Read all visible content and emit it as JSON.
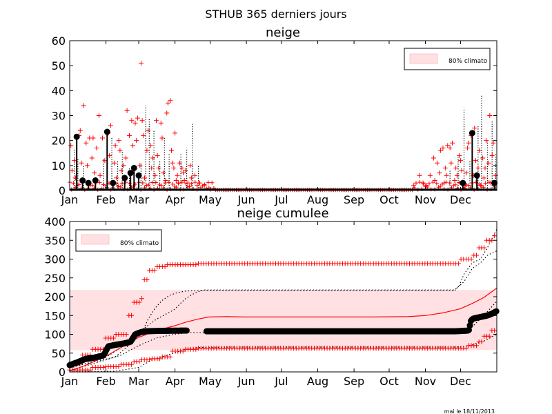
{
  "figure": {
    "suptitle": "STHUB 365 derniers jours",
    "footer": "mai le 18/11/2013"
  },
  "months": [
    "Jan",
    "Feb",
    "Mar",
    "Apr",
    "May",
    "Jun",
    "Jul",
    "Aug",
    "Sep",
    "Oct",
    "Nov",
    "Dec"
  ],
  "colors": {
    "red": "#ff0000",
    "band": "#ffe0e3",
    "black": "#000000"
  },
  "chart_data": [
    {
      "type": "scatter",
      "title": "neige",
      "xlabel": "",
      "ylabel": "",
      "ylim": [
        0,
        60
      ],
      "yticks": [
        0,
        10,
        20,
        30,
        40,
        50,
        60
      ],
      "xlim": [
        1,
        366
      ],
      "legend": {
        "label": "80% climato",
        "placement": "top-right"
      },
      "observed_peaks": [
        {
          "x": 7,
          "y": 21.5
        },
        {
          "x": 12,
          "y": 4
        },
        {
          "x": 17,
          "y": 3
        },
        {
          "x": 23,
          "y": 4
        },
        {
          "x": 33,
          "y": 23.5
        },
        {
          "x": 38,
          "y": 3
        },
        {
          "x": 48,
          "y": 5
        },
        {
          "x": 53,
          "y": 7
        },
        {
          "x": 56,
          "y": 9
        },
        {
          "x": 60,
          "y": 6
        },
        {
          "x": 337,
          "y": 3
        },
        {
          "x": 345,
          "y": 23
        },
        {
          "x": 349,
          "y": 6
        },
        {
          "x": 364,
          "y": 3
        }
      ],
      "dotted_spikes": [
        {
          "x": 5,
          "y": 17
        },
        {
          "x": 8,
          "y": 13
        },
        {
          "x": 13,
          "y": 10
        },
        {
          "x": 30,
          "y": 13
        },
        {
          "x": 37,
          "y": 21
        },
        {
          "x": 42,
          "y": 12
        },
        {
          "x": 46,
          "y": 16
        },
        {
          "x": 52,
          "y": 9
        },
        {
          "x": 62,
          "y": 11
        },
        {
          "x": 66,
          "y": 34
        },
        {
          "x": 69,
          "y": 29
        },
        {
          "x": 73,
          "y": 24
        },
        {
          "x": 78,
          "y": 12
        },
        {
          "x": 82,
          "y": 21
        },
        {
          "x": 86,
          "y": 15
        },
        {
          "x": 96,
          "y": 15
        },
        {
          "x": 101,
          "y": 17
        },
        {
          "x": 106,
          "y": 27
        },
        {
          "x": 111,
          "y": 10
        },
        {
          "x": 326,
          "y": 8
        },
        {
          "x": 333,
          "y": 14
        },
        {
          "x": 338,
          "y": 33
        },
        {
          "x": 343,
          "y": 12
        },
        {
          "x": 350,
          "y": 26
        },
        {
          "x": 353,
          "y": 38
        },
        {
          "x": 358,
          "y": 20
        },
        {
          "x": 362,
          "y": 28
        },
        {
          "x": 365,
          "y": 15
        }
      ],
      "ensemble_max_markers": [
        {
          "x": 2,
          "y": 18
        },
        {
          "x": 3,
          "y": 8
        },
        {
          "x": 5,
          "y": 12
        },
        {
          "x": 6,
          "y": 5
        },
        {
          "x": 9,
          "y": 22
        },
        {
          "x": 10,
          "y": 24
        },
        {
          "x": 11,
          "y": 11
        },
        {
          "x": 13,
          "y": 34
        },
        {
          "x": 15,
          "y": 19
        },
        {
          "x": 16,
          "y": 10
        },
        {
          "x": 18,
          "y": 21
        },
        {
          "x": 20,
          "y": 13
        },
        {
          "x": 21,
          "y": 21
        },
        {
          "x": 22,
          "y": 7
        },
        {
          "x": 24,
          "y": 17
        },
        {
          "x": 26,
          "y": 30
        },
        {
          "x": 27,
          "y": 6
        },
        {
          "x": 29,
          "y": 21
        },
        {
          "x": 31,
          "y": 12
        },
        {
          "x": 34,
          "y": 23
        },
        {
          "x": 35,
          "y": 14
        },
        {
          "x": 36,
          "y": 26
        },
        {
          "x": 39,
          "y": 11
        },
        {
          "x": 40,
          "y": 18
        },
        {
          "x": 41,
          "y": 5
        },
        {
          "x": 43,
          "y": 20
        },
        {
          "x": 44,
          "y": 16
        },
        {
          "x": 45,
          "y": 8
        },
        {
          "x": 47,
          "y": 10
        },
        {
          "x": 49,
          "y": 13
        },
        {
          "x": 50,
          "y": 32
        },
        {
          "x": 52,
          "y": 22
        },
        {
          "x": 54,
          "y": 28
        },
        {
          "x": 55,
          "y": 18
        },
        {
          "x": 57,
          "y": 27
        },
        {
          "x": 58,
          "y": 20
        },
        {
          "x": 59,
          "y": 29
        },
        {
          "x": 61,
          "y": 10
        },
        {
          "x": 62,
          "y": 51
        },
        {
          "x": 63,
          "y": 28
        },
        {
          "x": 64,
          "y": 22
        },
        {
          "x": 65,
          "y": 5
        },
        {
          "x": 67,
          "y": 16
        },
        {
          "x": 68,
          "y": 24
        },
        {
          "x": 70,
          "y": 18
        },
        {
          "x": 71,
          "y": 9
        },
        {
          "x": 72,
          "y": 13
        },
        {
          "x": 74,
          "y": 6
        },
        {
          "x": 75,
          "y": 28
        },
        {
          "x": 76,
          "y": 14
        },
        {
          "x": 77,
          "y": 9
        },
        {
          "x": 79,
          "y": 27
        },
        {
          "x": 80,
          "y": 21
        },
        {
          "x": 81,
          "y": 7
        },
        {
          "x": 83,
          "y": 4
        },
        {
          "x": 84,
          "y": 31
        },
        {
          "x": 85,
          "y": 35
        },
        {
          "x": 87,
          "y": 36
        },
        {
          "x": 88,
          "y": 16
        },
        {
          "x": 89,
          "y": 11
        },
        {
          "x": 90,
          "y": 9
        },
        {
          "x": 91,
          "y": 23
        },
        {
          "x": 92,
          "y": 4
        },
        {
          "x": 93,
          "y": 6
        },
        {
          "x": 94,
          "y": 3
        },
        {
          "x": 95,
          "y": 11
        },
        {
          "x": 97,
          "y": 9
        },
        {
          "x": 98,
          "y": 7
        },
        {
          "x": 99,
          "y": 4
        },
        {
          "x": 100,
          "y": 8
        },
        {
          "x": 102,
          "y": 3
        },
        {
          "x": 104,
          "y": 10
        },
        {
          "x": 105,
          "y": 5
        },
        {
          "x": 108,
          "y": 6
        },
        {
          "x": 110,
          "y": 2
        },
        {
          "x": 112,
          "y": 3
        },
        {
          "x": 116,
          "y": 2
        },
        {
          "x": 120,
          "y": 1
        },
        {
          "x": 295,
          "y": 2
        },
        {
          "x": 300,
          "y": 6
        },
        {
          "x": 303,
          "y": 3
        },
        {
          "x": 306,
          "y": 2
        },
        {
          "x": 309,
          "y": 6
        },
        {
          "x": 312,
          "y": 13
        },
        {
          "x": 313,
          "y": 4
        },
        {
          "x": 315,
          "y": 11
        },
        {
          "x": 317,
          "y": 7
        },
        {
          "x": 318,
          "y": 16
        },
        {
          "x": 320,
          "y": 17
        },
        {
          "x": 321,
          "y": 3
        },
        {
          "x": 322,
          "y": 9
        },
        {
          "x": 323,
          "y": 6
        },
        {
          "x": 324,
          "y": 18
        },
        {
          "x": 326,
          "y": 17
        },
        {
          "x": 327,
          "y": 11
        },
        {
          "x": 328,
          "y": 19
        },
        {
          "x": 330,
          "y": 4
        },
        {
          "x": 331,
          "y": 9
        },
        {
          "x": 332,
          "y": 6
        },
        {
          "x": 334,
          "y": 14
        },
        {
          "x": 335,
          "y": 12
        },
        {
          "x": 336,
          "y": 8
        },
        {
          "x": 339,
          "y": 2
        },
        {
          "x": 340,
          "y": 7
        },
        {
          "x": 341,
          "y": 17
        },
        {
          "x": 342,
          "y": 19
        },
        {
          "x": 344,
          "y": 22
        },
        {
          "x": 346,
          "y": 6
        },
        {
          "x": 347,
          "y": 25
        },
        {
          "x": 348,
          "y": 12
        },
        {
          "x": 350,
          "y": 9
        },
        {
          "x": 351,
          "y": 16
        },
        {
          "x": 352,
          "y": 2
        },
        {
          "x": 354,
          "y": 13
        },
        {
          "x": 355,
          "y": 5
        },
        {
          "x": 356,
          "y": 9
        },
        {
          "x": 357,
          "y": 20
        },
        {
          "x": 359,
          "y": 11
        },
        {
          "x": 360,
          "y": 30
        },
        {
          "x": 361,
          "y": 3
        },
        {
          "x": 362,
          "y": 14
        },
        {
          "x": 363,
          "y": 19
        },
        {
          "x": 365,
          "y": 6
        }
      ]
    },
    {
      "type": "line",
      "title": "neige cumulee",
      "xlabel": "",
      "ylabel": "",
      "ylim": [
        0,
        400
      ],
      "yticks": [
        0,
        50,
        100,
        150,
        200,
        250,
        300,
        350,
        400
      ],
      "xlim": [
        1,
        366
      ],
      "legend": {
        "label": "80% climato",
        "placement": "top-left"
      },
      "band": [
        58,
        218
      ],
      "median_curve": [
        [
          1,
          2
        ],
        [
          15,
          18
        ],
        [
          32,
          42
        ],
        [
          45,
          65
        ],
        [
          60,
          92
        ],
        [
          75,
          110
        ],
        [
          90,
          122
        ],
        [
          100,
          132
        ],
        [
          110,
          140
        ],
        [
          120,
          146
        ],
        [
          135,
          147
        ],
        [
          150,
          146
        ],
        [
          200,
          146
        ],
        [
          260,
          146
        ],
        [
          290,
          147
        ],
        [
          305,
          150
        ],
        [
          320,
          157
        ],
        [
          335,
          168
        ],
        [
          345,
          182
        ],
        [
          355,
          198
        ],
        [
          366,
          223
        ]
      ],
      "p10_curve": [
        [
          1,
          0
        ],
        [
          40,
          2
        ],
        [
          60,
          12
        ],
        [
          70,
          30
        ],
        [
          80,
          40
        ],
        [
          90,
          50
        ],
        [
          100,
          60
        ],
        [
          110,
          65
        ],
        [
          140,
          66
        ],
        [
          300,
          66
        ],
        [
          335,
          66
        ],
        [
          345,
          72
        ],
        [
          355,
          82
        ],
        [
          366,
          100
        ]
      ],
      "p90_curve": [
        [
          1,
          15
        ],
        [
          20,
          25
        ],
        [
          40,
          40
        ],
        [
          55,
          80
        ],
        [
          62,
          100
        ],
        [
          68,
          140
        ],
        [
          74,
          170
        ],
        [
          80,
          190
        ],
        [
          86,
          203
        ],
        [
          92,
          210
        ],
        [
          100,
          215
        ],
        [
          110,
          216
        ],
        [
          290,
          216
        ],
        [
          330,
          216
        ],
        [
          334,
          230
        ],
        [
          338,
          260
        ],
        [
          345,
          290
        ],
        [
          352,
          300
        ],
        [
          358,
          330
        ],
        [
          366,
          380
        ]
      ],
      "q25_curve": [
        [
          1,
          4
        ],
        [
          25,
          25
        ],
        [
          45,
          45
        ],
        [
          60,
          70
        ],
        [
          75,
          90
        ],
        [
          90,
          100
        ],
        [
          105,
          105
        ],
        [
          120,
          103
        ],
        [
          330,
          103
        ],
        [
          338,
          108
        ],
        [
          345,
          120
        ],
        [
          355,
          150
        ],
        [
          366,
          188
        ]
      ],
      "q75_curve": [
        [
          1,
          10
        ],
        [
          30,
          35
        ],
        [
          50,
          75
        ],
        [
          62,
          110
        ],
        [
          75,
          140
        ],
        [
          90,
          165
        ],
        [
          100,
          195
        ],
        [
          108,
          210
        ],
        [
          115,
          218
        ],
        [
          330,
          218
        ],
        [
          338,
          240
        ],
        [
          345,
          275
        ],
        [
          352,
          290
        ],
        [
          358,
          310
        ],
        [
          366,
          322
        ]
      ],
      "ens_max_steps": [
        [
          1,
          22
        ],
        [
          10,
          45
        ],
        [
          20,
          60
        ],
        [
          30,
          90
        ],
        [
          40,
          100
        ],
        [
          50,
          150
        ],
        [
          56,
          185
        ],
        [
          62,
          195
        ],
        [
          64,
          245
        ],
        [
          68,
          270
        ],
        [
          74,
          280
        ],
        [
          84,
          285
        ],
        [
          110,
          288
        ],
        [
          330,
          288
        ],
        [
          335,
          300
        ],
        [
          345,
          310
        ],
        [
          350,
          330
        ],
        [
          356,
          350
        ],
        [
          362,
          362
        ],
        [
          366,
          393
        ]
      ],
      "ens_min_steps": [
        [
          1,
          5
        ],
        [
          20,
          12
        ],
        [
          30,
          14
        ],
        [
          45,
          20
        ],
        [
          55,
          27
        ],
        [
          62,
          32
        ],
        [
          70,
          35
        ],
        [
          80,
          40
        ],
        [
          88,
          55
        ],
        [
          100,
          60
        ],
        [
          110,
          63
        ],
        [
          300,
          63
        ],
        [
          335,
          63
        ],
        [
          340,
          70
        ],
        [
          350,
          80
        ],
        [
          355,
          95
        ],
        [
          360,
          110
        ],
        [
          366,
          135
        ]
      ],
      "observed_segments": [
        [
          [
            1,
            18
          ],
          [
            8,
            26
          ],
          [
            14,
            34
          ],
          [
            18,
            36
          ],
          [
            22,
            38
          ],
          [
            27,
            42
          ],
          [
            30,
            44
          ],
          [
            34,
            68
          ],
          [
            40,
            72
          ],
          [
            48,
            76
          ],
          [
            53,
            80
          ],
          [
            55,
            90
          ],
          [
            57,
            100
          ],
          [
            62,
            106
          ],
          [
            66,
            108
          ],
          [
            75,
            109
          ],
          [
            100,
            110
          ],
          [
            101,
            110
          ]
        ],
        [
          [
            118,
            108
          ],
          [
            200,
            108
          ],
          [
            280,
            108
          ],
          [
            330,
            108
          ],
          [
            342,
            110
          ],
          [
            344,
            137
          ],
          [
            346,
            142
          ],
          [
            352,
            146
          ],
          [
            358,
            150
          ],
          [
            362,
            155
          ],
          [
            366,
            162
          ]
        ]
      ]
    }
  ]
}
